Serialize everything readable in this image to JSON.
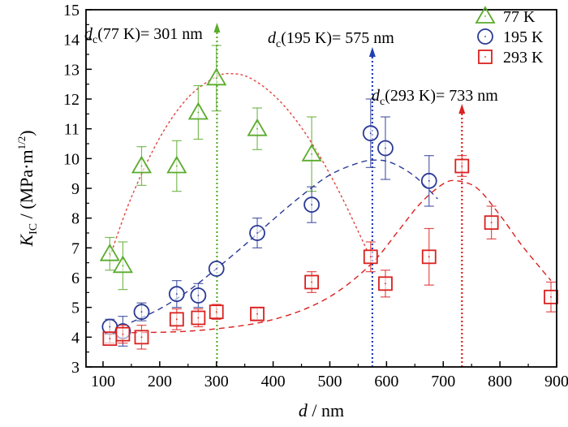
{
  "chart_data": {
    "type": "scatter",
    "xlabel": "d / nm",
    "ylabel": "K_IC / (MPa·m^1/2)",
    "xlabel_parts": {
      "var": "d",
      "unit": " / nm"
    },
    "ylabel_parts": {
      "var": "K",
      "sub": "IC",
      "unit_pre": " / (MPa·m",
      "sup": "1/2",
      "unit_post": ")"
    },
    "xlim": [
      70,
      900
    ],
    "ylim": [
      3,
      15
    ],
    "xticks": [
      100,
      200,
      300,
      400,
      500,
      600,
      700,
      800,
      900
    ],
    "yticks": [
      3,
      4,
      5,
      6,
      7,
      8,
      9,
      10,
      11,
      12,
      13,
      14,
      15
    ],
    "legend_position": "top-right",
    "series": [
      {
        "name": "77 K",
        "marker": "triangle",
        "color": "#5aab2c",
        "curve_color": "#e0453d",
        "x": [
          112,
          135,
          168,
          230,
          268,
          300,
          372,
          468
        ],
        "y": [
          6.8,
          6.4,
          9.75,
          9.75,
          11.55,
          12.7,
          11.0,
          10.15
        ],
        "err": [
          0.55,
          0.8,
          0.65,
          0.85,
          0.9,
          1.1,
          0.7,
          1.25
        ],
        "fit_x": [
          112,
          150,
          200,
          250,
          300,
          330,
          360,
          400,
          440,
          480,
          520,
          566
        ],
        "fit_y": [
          6.7,
          8.7,
          10.7,
          12.05,
          12.75,
          12.85,
          12.7,
          12.15,
          11.3,
          10.15,
          8.75,
          6.9
        ]
      },
      {
        "name": "195 K",
        "marker": "circle",
        "color": "#2b3a96",
        "curve_color": "#2b3a96",
        "x": [
          112,
          135,
          168,
          230,
          268,
          300,
          372,
          468,
          572,
          598,
          675
        ],
        "y": [
          4.35,
          4.2,
          4.85,
          5.45,
          5.4,
          6.3,
          7.5,
          8.45,
          10.85,
          10.35,
          9.25
        ],
        "err": [
          0.25,
          0.5,
          0.3,
          0.45,
          0.4,
          0.0,
          0.5,
          0.6,
          1.15,
          1.05,
          0.85
        ],
        "fit_x": [
          150,
          200,
          250,
          300,
          350,
          400,
          450,
          500,
          550,
          580,
          610,
          650,
          690
        ],
        "fit_y": [
          4.5,
          4.95,
          5.55,
          6.3,
          7.1,
          7.95,
          8.75,
          9.45,
          9.85,
          9.95,
          9.85,
          9.4,
          8.65
        ]
      },
      {
        "name": "293 K",
        "marker": "square",
        "color": "#d9211f",
        "curve_color": "#d9211f",
        "x": [
          112,
          135,
          168,
          230,
          268,
          300,
          372,
          468,
          572,
          598,
          675,
          733,
          785,
          890
        ],
        "y": [
          3.95,
          4.1,
          4.0,
          4.6,
          4.65,
          4.85,
          4.78,
          5.85,
          6.7,
          5.8,
          6.7,
          9.75,
          7.85,
          5.35
        ],
        "err": [
          0.15,
          0.3,
          0.4,
          0.35,
          0.3,
          0.25,
          0.2,
          0.35,
          0.5,
          0.45,
          0.95,
          0.35,
          0.55,
          0.5
        ],
        "fit_x": [
          150,
          250,
          350,
          420,
          480,
          530,
          580,
          620,
          660,
          700,
          725,
          760,
          800,
          840,
          890
        ],
        "fit_y": [
          4.15,
          4.2,
          4.4,
          4.7,
          5.15,
          5.75,
          6.6,
          7.55,
          8.5,
          9.15,
          9.25,
          9.0,
          8.1,
          7.05,
          5.9
        ]
      }
    ],
    "annotations": [
      {
        "prefix": "d",
        "sub": "c",
        "text": "(77 K)= 301 nm",
        "color": "#5aab2c",
        "x": 301
      },
      {
        "prefix": "d",
        "sub": "c",
        "text": "(195 K)= 575 nm",
        "color": "#1f3fb5",
        "x": 575
      },
      {
        "prefix": "d",
        "sub": "c",
        "text": "(293 K)= 733 nm",
        "color": "#d9211f",
        "x": 733
      }
    ]
  }
}
